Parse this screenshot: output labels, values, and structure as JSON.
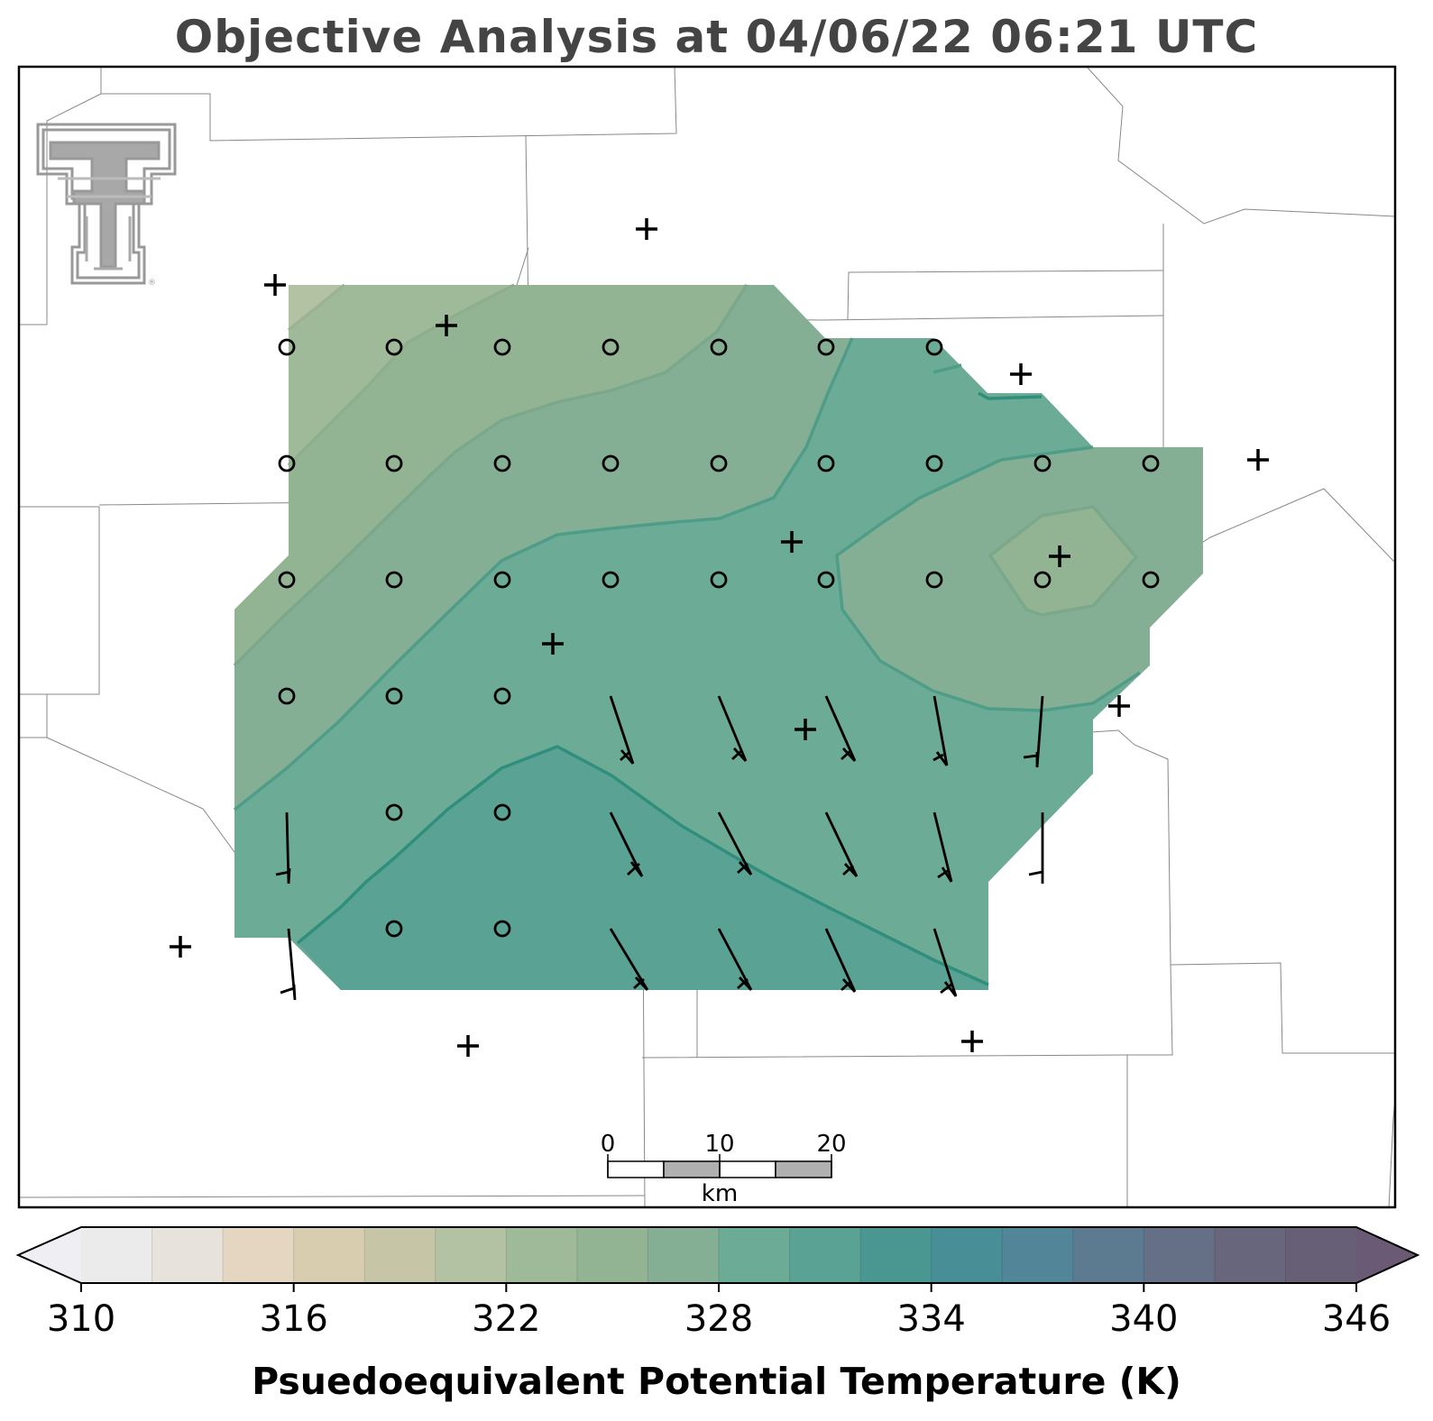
{
  "title": "Objective Analysis at 04/06/22 06:21 UTC",
  "colorbar": {
    "label": "Psuedoequivalent Potential Temperature (K)",
    "tick_labels": [
      "310",
      "316",
      "322",
      "328",
      "334",
      "340",
      "346"
    ],
    "colors": [
      "#efeef2",
      "#ecebeb",
      "#e8e2dc",
      "#e5d6c2",
      "#d9cdb0",
      "#c6c5a5",
      "#b2c2a2",
      "#9fba98",
      "#92b493",
      "#84af94",
      "#6cab96",
      "#5aa294",
      "#4a9792",
      "#488e96",
      "#518597",
      "#5c7b90",
      "#657086",
      "#68667c",
      "#675f76",
      "#6a5a75"
    ]
  },
  "scale_bar": {
    "labels": [
      "0",
      "10",
      "20"
    ],
    "unit": "km"
  },
  "logo": {
    "name": "texas-tech-double-t-logo"
  }
}
